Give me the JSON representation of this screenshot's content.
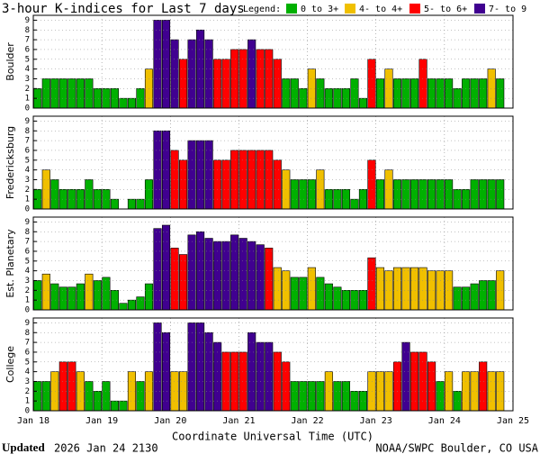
{
  "title": "3-hour K-indices for Last 7 days",
  "legend": {
    "label": "Legend:",
    "items": [
      {
        "name": "0 to 3+",
        "color": "#00b000"
      },
      {
        "name": "4- to 4+",
        "color": "#f0c000"
      },
      {
        "name": "5- to 6+",
        "color": "#ff0000"
      },
      {
        "name": "7- to 9",
        "color": "#400090"
      }
    ]
  },
  "x_axis": {
    "categories": [
      "Jan 18",
      "Jan 19",
      "Jan 20",
      "Jan 21",
      "Jan 22",
      "Jan 23",
      "Jan 24",
      "Jan 25"
    ],
    "xlabel": "Coordinate Universal Time (UTC)"
  },
  "chart_data": [
    {
      "type": "bar",
      "ylabel": "Boulder",
      "ylim": [
        0,
        9.5
      ],
      "yticks": [
        0,
        1,
        2,
        3,
        4,
        5,
        6,
        7,
        8,
        9
      ],
      "grid": true,
      "series": [
        {
          "values": [
            2,
            3,
            3,
            3,
            3,
            3,
            3,
            2,
            2,
            2,
            1,
            1,
            2,
            4,
            9,
            9,
            7,
            5,
            7,
            8,
            7,
            5,
            5,
            6,
            6,
            7,
            6,
            6,
            5,
            3,
            3,
            2,
            4,
            3,
            2,
            2,
            2,
            3,
            1,
            5,
            3,
            4,
            3,
            3,
            3,
            5,
            3,
            3,
            3,
            2,
            3,
            3,
            3,
            4,
            3,
            0
          ],
          "colors": [
            "#00b000",
            "#00b000",
            "#00b000",
            "#00b000",
            "#00b000",
            "#00b000",
            "#00b000",
            "#00b000",
            "#00b000",
            "#00b000",
            "#00b000",
            "#00b000",
            "#00b000",
            "#f0c000",
            "#400090",
            "#400090",
            "#400090",
            "#ff0000",
            "#400090",
            "#400090",
            "#400090",
            "#ff0000",
            "#ff0000",
            "#ff0000",
            "#ff0000",
            "#400090",
            "#ff0000",
            "#ff0000",
            "#ff0000",
            "#00b000",
            "#00b000",
            "#00b000",
            "#f0c000",
            "#00b000",
            "#00b000",
            "#00b000",
            "#00b000",
            "#00b000",
            "#00b000",
            "#ff0000",
            "#00b000",
            "#f0c000",
            "#00b000",
            "#00b000",
            "#00b000",
            "#ff0000",
            "#00b000",
            "#00b000",
            "#00b000",
            "#00b000",
            "#00b000",
            "#00b000",
            "#00b000",
            "#f0c000",
            "#00b000",
            "#00b000"
          ]
        }
      ]
    },
    {
      "type": "bar",
      "ylabel": "Fredericksburg",
      "ylim": [
        0,
        9.5
      ],
      "yticks": [
        0,
        1,
        2,
        3,
        4,
        5,
        6,
        7,
        8,
        9
      ],
      "grid": true,
      "series": [
        {
          "values": [
            2,
            4,
            3,
            2,
            2,
            2,
            3,
            2,
            2,
            1,
            0,
            1,
            1,
            3,
            8,
            8,
            6,
            5,
            7,
            7,
            7,
            5,
            5,
            6,
            6,
            6,
            6,
            6,
            5,
            4,
            3,
            3,
            3,
            4,
            2,
            2,
            2,
            1,
            2,
            5,
            3,
            4,
            3,
            3,
            3,
            3,
            3,
            3,
            3,
            2,
            2,
            3,
            3,
            3,
            3,
            0
          ],
          "colors": [
            "#00b000",
            "#f0c000",
            "#00b000",
            "#00b000",
            "#00b000",
            "#00b000",
            "#00b000",
            "#00b000",
            "#00b000",
            "#00b000",
            "#00b000",
            "#00b000",
            "#00b000",
            "#00b000",
            "#400090",
            "#400090",
            "#ff0000",
            "#ff0000",
            "#400090",
            "#400090",
            "#400090",
            "#ff0000",
            "#ff0000",
            "#ff0000",
            "#ff0000",
            "#ff0000",
            "#ff0000",
            "#ff0000",
            "#ff0000",
            "#f0c000",
            "#00b000",
            "#00b000",
            "#00b000",
            "#f0c000",
            "#00b000",
            "#00b000",
            "#00b000",
            "#00b000",
            "#00b000",
            "#ff0000",
            "#00b000",
            "#f0c000",
            "#00b000",
            "#00b000",
            "#00b000",
            "#00b000",
            "#00b000",
            "#00b000",
            "#00b000",
            "#00b000",
            "#00b000",
            "#00b000",
            "#00b000",
            "#00b000",
            "#00b000",
            "#00b000"
          ]
        }
      ]
    },
    {
      "type": "bar",
      "ylabel": "Est. Planetary",
      "ylim": [
        0,
        9.5
      ],
      "yticks": [
        0,
        1,
        2,
        3,
        4,
        5,
        6,
        7,
        8,
        9
      ],
      "grid": true,
      "series": [
        {
          "values": [
            3,
            3.67,
            2.67,
            2.33,
            2.33,
            2.67,
            3.67,
            3,
            3.33,
            2,
            0.67,
            1,
            1.33,
            2.67,
            8.33,
            8.67,
            6.33,
            5.67,
            7.67,
            8,
            7.33,
            7,
            7,
            7.67,
            7.33,
            7,
            6.67,
            6.33,
            4.33,
            4,
            3.33,
            3.33,
            4.33,
            3.33,
            2.67,
            2.33,
            2,
            2,
            2,
            5.33,
            4.33,
            4,
            4.33,
            4.33,
            4.33,
            4.33,
            4,
            4,
            4,
            2.33,
            2.33,
            2.67,
            3,
            3,
            4,
            null
          ],
          "colors": [
            "#00b000",
            "#f0c000",
            "#00b000",
            "#00b000",
            "#00b000",
            "#00b000",
            "#f0c000",
            "#00b000",
            "#00b000",
            "#00b000",
            "#00b000",
            "#00b000",
            "#00b000",
            "#00b000",
            "#400090",
            "#400090",
            "#ff0000",
            "#ff0000",
            "#400090",
            "#400090",
            "#400090",
            "#400090",
            "#400090",
            "#400090",
            "#400090",
            "#400090",
            "#400090",
            "#ff0000",
            "#f0c000",
            "#f0c000",
            "#00b000",
            "#00b000",
            "#f0c000",
            "#00b000",
            "#00b000",
            "#00b000",
            "#00b000",
            "#00b000",
            "#00b000",
            "#ff0000",
            "#f0c000",
            "#f0c000",
            "#f0c000",
            "#f0c000",
            "#f0c000",
            "#f0c000",
            "#f0c000",
            "#f0c000",
            "#f0c000",
            "#00b000",
            "#00b000",
            "#00b000",
            "#00b000",
            "#00b000",
            "#f0c000",
            null
          ]
        }
      ]
    },
    {
      "type": "bar",
      "ylabel": "College",
      "ylim": [
        0,
        9.5
      ],
      "yticks": [
        0,
        1,
        2,
        3,
        4,
        5,
        6,
        7,
        8,
        9
      ],
      "grid": true,
      "series": [
        {
          "values": [
            3,
            3,
            4,
            5,
            5,
            4,
            3,
            2,
            3,
            1,
            1,
            4,
            3,
            4,
            9,
            8,
            4,
            4,
            9,
            9,
            8,
            7,
            6,
            6,
            6,
            8,
            7,
            7,
            6,
            5,
            3,
            3,
            3,
            3,
            4,
            3,
            3,
            2,
            2,
            4,
            4,
            4,
            5,
            7,
            6,
            6,
            5,
            3,
            4,
            2,
            4,
            4,
            5,
            4,
            4,
            0
          ],
          "colors": [
            "#00b000",
            "#00b000",
            "#f0c000",
            "#ff0000",
            "#ff0000",
            "#f0c000",
            "#00b000",
            "#00b000",
            "#00b000",
            "#00b000",
            "#00b000",
            "#f0c000",
            "#00b000",
            "#f0c000",
            "#400090",
            "#400090",
            "#f0c000",
            "#f0c000",
            "#400090",
            "#400090",
            "#400090",
            "#400090",
            "#ff0000",
            "#ff0000",
            "#ff0000",
            "#400090",
            "#400090",
            "#400090",
            "#ff0000",
            "#ff0000",
            "#00b000",
            "#00b000",
            "#00b000",
            "#00b000",
            "#f0c000",
            "#00b000",
            "#00b000",
            "#00b000",
            "#00b000",
            "#f0c000",
            "#f0c000",
            "#f0c000",
            "#ff0000",
            "#400090",
            "#ff0000",
            "#ff0000",
            "#ff0000",
            "#00b000",
            "#f0c000",
            "#00b000",
            "#f0c000",
            "#f0c000",
            "#ff0000",
            "#f0c000",
            "#f0c000",
            "#00b000"
          ]
        }
      ]
    }
  ],
  "footer": {
    "updated_label": "Updated",
    "updated": "2026 Jan 24 2130",
    "credit": "NOAA/SWPC Boulder, CO USA"
  }
}
